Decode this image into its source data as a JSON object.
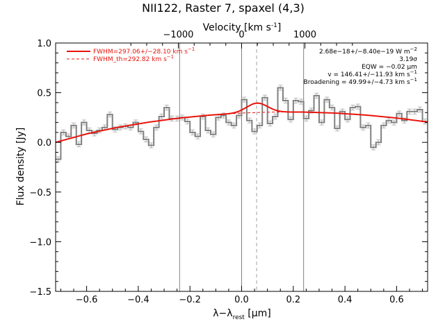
{
  "chart_data": {
    "type": "line",
    "title": "NII122, Raster 7, spaxel (4,3)",
    "xlabel_main": "λ−λ",
    "xlabel_sub": "rest",
    "xlabel_unit": " [μm]",
    "ylabel": "Flux density [Jy]",
    "top_axis_label_main": "Velocity [km s",
    "top_axis_label_sup": "-1",
    "top_axis_label_end": "]",
    "xlim": [
      -0.72,
      0.72
    ],
    "ylim": [
      -1.5,
      1.0
    ],
    "x_ticks": [
      -0.6,
      -0.4,
      -0.2,
      0.0,
      0.2,
      0.4,
      0.6
    ],
    "x_tick_labels": [
      "−0.6",
      "−0.4",
      "−0.2",
      "0.0",
      "0.2",
      "0.4",
      "0.6"
    ],
    "y_ticks": [
      -1.5,
      -1.0,
      -0.5,
      0.0,
      0.5,
      1.0
    ],
    "y_tick_labels": [
      "−1.5",
      "−1.0",
      "−0.5",
      "0.0",
      "0.5",
      "1.0"
    ],
    "top_ticks_um": [
      -0.245,
      0.0,
      0.245
    ],
    "top_tick_labels": [
      "−1000",
      "0",
      "1000"
    ],
    "vertical_lines_solid": [
      -0.24,
      0.0,
      0.24
    ],
    "vertical_line_dashed": 0.058,
    "bin_width": 0.02,
    "spectrum": {
      "x": [
        -0.71,
        -0.69,
        -0.67,
        -0.65,
        -0.63,
        -0.61,
        -0.59,
        -0.57,
        -0.55,
        -0.53,
        -0.51,
        -0.49,
        -0.47,
        -0.45,
        -0.43,
        -0.41,
        -0.39,
        -0.37,
        -0.35,
        -0.33,
        -0.31,
        -0.29,
        -0.27,
        -0.25,
        -0.23,
        -0.21,
        -0.19,
        -0.17,
        -0.15,
        -0.13,
        -0.11,
        -0.09,
        -0.07,
        -0.05,
        -0.03,
        -0.01,
        0.01,
        0.03,
        0.05,
        0.07,
        0.09,
        0.11,
        0.13,
        0.15,
        0.17,
        0.19,
        0.21,
        0.23,
        0.25,
        0.27,
        0.29,
        0.31,
        0.33,
        0.35,
        0.37,
        0.39,
        0.41,
        0.43,
        0.45,
        0.47,
        0.49,
        0.51,
        0.53,
        0.55,
        0.57,
        0.59,
        0.61,
        0.63,
        0.65,
        0.67,
        0.69,
        0.71
      ],
      "y": [
        -0.17,
        0.1,
        0.06,
        0.17,
        -0.02,
        0.2,
        0.12,
        0.09,
        0.12,
        0.15,
        0.28,
        0.13,
        0.15,
        0.16,
        0.15,
        0.2,
        0.11,
        0.03,
        -0.03,
        0.15,
        0.26,
        0.35,
        0.24,
        0.24,
        0.25,
        0.21,
        0.1,
        0.06,
        0.26,
        0.12,
        0.08,
        0.25,
        0.27,
        0.2,
        0.17,
        0.27,
        0.43,
        0.22,
        0.11,
        0.17,
        0.45,
        0.19,
        0.26,
        0.55,
        0.42,
        0.23,
        0.42,
        0.41,
        0.24,
        0.32,
        0.47,
        0.2,
        0.43,
        0.35,
        0.14,
        0.31,
        0.23,
        0.35,
        0.36,
        0.15,
        0.17,
        -0.05,
        0.0,
        0.17,
        0.22,
        0.2,
        0.29,
        0.22,
        0.31,
        0.31,
        0.33,
        0.21
      ],
      "err": 0.025
    },
    "fit_baseline": {
      "x": [
        -0.72,
        -0.6,
        -0.48,
        -0.36,
        -0.24,
        -0.12,
        0.0,
        0.12,
        0.24,
        0.36,
        0.48,
        0.6,
        0.72
      ],
      "y": [
        0.0,
        0.085,
        0.152,
        0.203,
        0.245,
        0.275,
        0.295,
        0.305,
        0.305,
        0.295,
        0.275,
        0.245,
        0.205
      ]
    },
    "fit_gaussian": {
      "center": 0.06,
      "amplitude": 0.095,
      "sigma": 0.04
    },
    "legend": [
      {
        "name": "FWHM=297.06+/−28.10 km s",
        "sup": "−1",
        "style": "solid",
        "color": "#e8140c"
      },
      {
        "name": "FWHM_th=292.82 km s",
        "sup": "−1",
        "style": "dashed",
        "color": "#e8140c"
      }
    ],
    "annotations": [
      {
        "text": "2.68e−18+/−8.40e−19 W m",
        "sup": "−2"
      },
      {
        "text": "3.19σ",
        "sup": ""
      },
      {
        "text": "EQW = −0.02 μm",
        "sup": ""
      },
      {
        "text": "v = 146.41+/−11.93 km s",
        "sup": "−1"
      },
      {
        "text": "Broadening = 49.99+/−4.73 km s",
        "sup": "−1"
      }
    ],
    "colors": {
      "spectrum": "#808080",
      "error": "#b4b4b4",
      "fit": "#e8140c",
      "vline": "#808080",
      "axis": "#000000"
    },
    "grid": false,
    "legend_position": "top-left"
  }
}
